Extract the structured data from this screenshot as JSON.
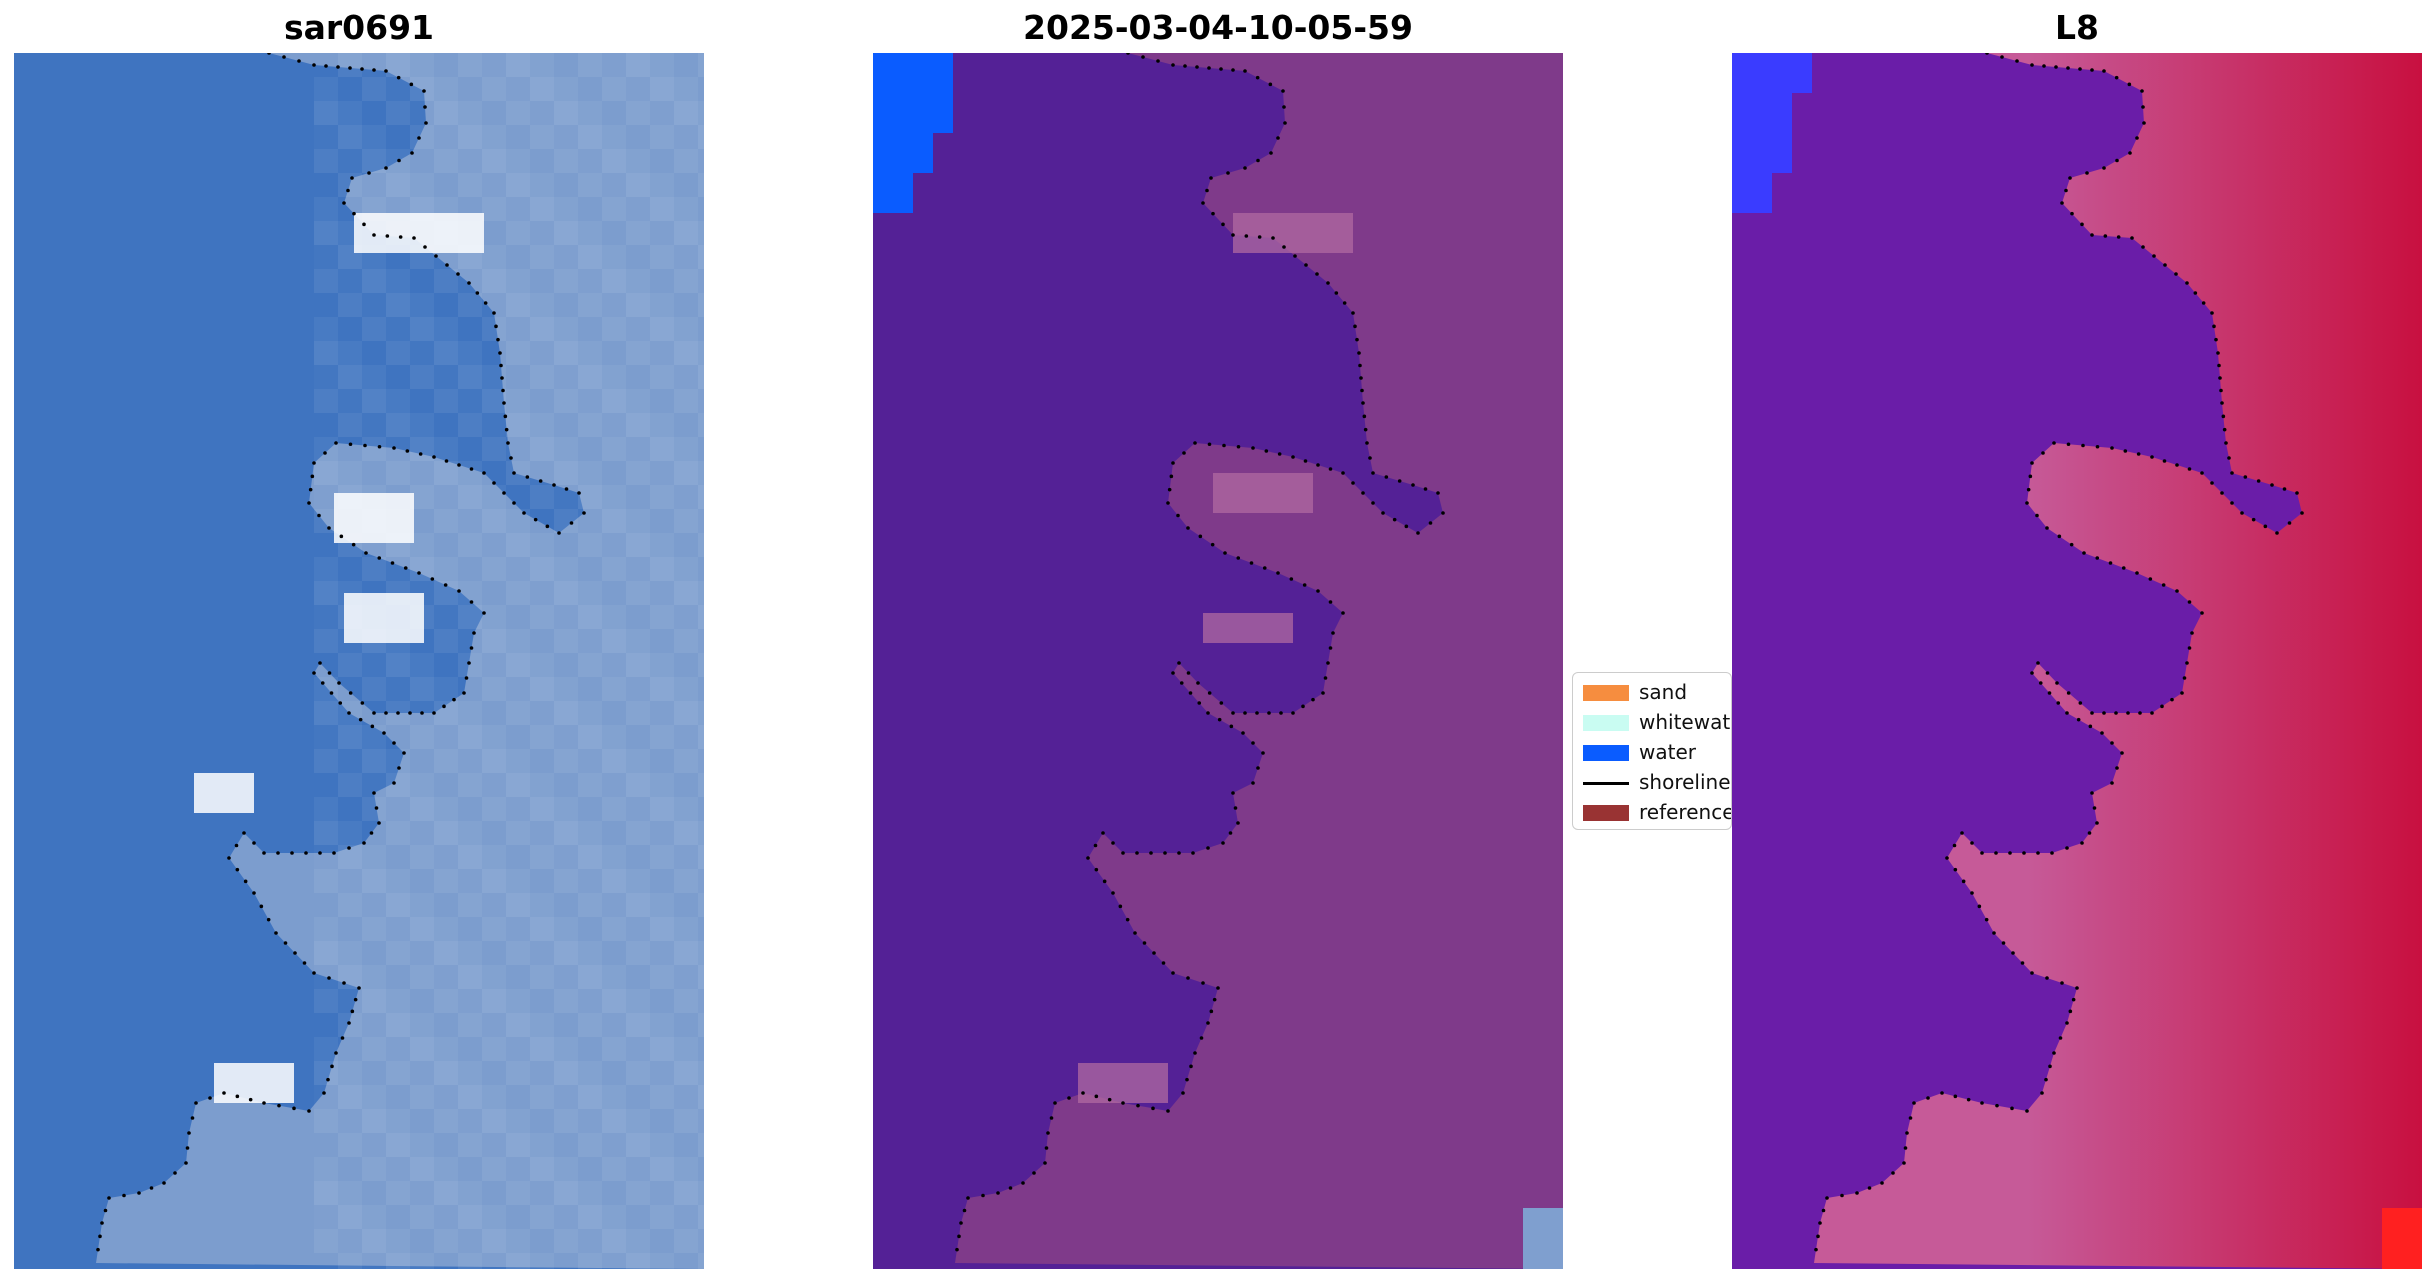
{
  "panels": [
    {
      "title": "sar0691",
      "icon": "rgb-image",
      "base_color": "#3f74c0"
    },
    {
      "title": "2025-03-04-10-05-59",
      "icon": "classified-image",
      "base_color": "#542196"
    },
    {
      "title": "L8",
      "icon": "mndwi-image",
      "base_color": "#6a1da8"
    }
  ],
  "legend": {
    "items": [
      {
        "label": "sand",
        "color": "#f68d3f",
        "kind": "patch"
      },
      {
        "label": "whitewater",
        "color": "#c9fcf2",
        "kind": "patch"
      },
      {
        "label": "water",
        "color": "#0a5cff",
        "kind": "patch"
      },
      {
        "label": "shoreline",
        "color": "#000000",
        "kind": "line"
      },
      {
        "label": "reference",
        "color": "#993333",
        "kind": "patch"
      }
    ]
  },
  "colors": {
    "rgb_water": "#3f74c0",
    "rgb_land": "#7f9fcf",
    "rgb_bright": "#ffffff",
    "class_water": "#542196",
    "class_land": "#7f3a8a",
    "class_pink": "#b06aa0",
    "class_blue": "#0a5cff",
    "index_water": "#6a1da8",
    "index_mid": "#c65a98",
    "index_land": "#c81040",
    "index_blue": "#3a3cff"
  }
}
